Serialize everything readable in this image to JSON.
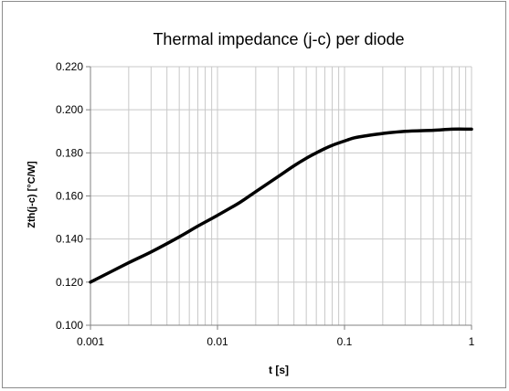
{
  "chart_data": {
    "type": "line",
    "title": "Thermal impedance (j-c) per diode",
    "xlabel": "t [s]",
    "ylabel": "Zth(j-c) [°C/W]",
    "xscale": "log",
    "xlim": [
      0.001,
      1
    ],
    "ylim": [
      0.1,
      0.22
    ],
    "xticks": [
      0.001,
      0.01,
      0.1,
      1
    ],
    "xtick_labels": [
      "0.001",
      "0.01",
      "0.1",
      "1"
    ],
    "yticks": [
      0.1,
      0.12,
      0.14,
      0.16,
      0.18,
      0.2,
      0.22
    ],
    "ytick_labels": [
      "0.100",
      "0.120",
      "0.140",
      "0.160",
      "0.180",
      "0.200",
      "0.220"
    ],
    "grid": true,
    "legend": false,
    "line_color": "#000000",
    "grid_color": "#c8c8c8",
    "series": [
      {
        "x": [
          0.001,
          0.002,
          0.003,
          0.005,
          0.007,
          0.01,
          0.015,
          0.02,
          0.03,
          0.04,
          0.05,
          0.06,
          0.07,
          0.08,
          0.1,
          0.12,
          0.15,
          0.2,
          0.3,
          0.5,
          0.7,
          1
        ],
        "values": [
          0.12,
          0.129,
          0.134,
          0.141,
          0.146,
          0.151,
          0.157,
          0.162,
          0.169,
          0.174,
          0.1775,
          0.18,
          0.182,
          0.1835,
          0.1855,
          0.187,
          0.188,
          0.189,
          0.19,
          0.1905,
          0.191,
          0.191
        ]
      }
    ]
  }
}
